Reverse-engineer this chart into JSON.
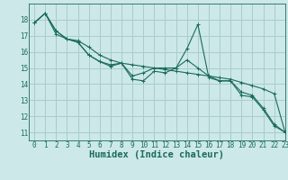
{
  "title": "",
  "xlabel": "Humidex (Indice chaleur)",
  "xlim": [
    -0.5,
    23
  ],
  "ylim": [
    10.5,
    19.0
  ],
  "bg_color": "#cce8e8",
  "grid_color": "#aacccc",
  "line_color": "#1a6b5a",
  "lines": [
    [
      17.8,
      18.4,
      17.1,
      16.8,
      16.6,
      15.8,
      15.4,
      15.1,
      15.3,
      14.3,
      14.2,
      14.8,
      14.7,
      15.0,
      16.2,
      17.7,
      14.4,
      14.2,
      14.2,
      13.3,
      13.2,
      12.4,
      11.4,
      11.0
    ],
    [
      17.8,
      18.4,
      17.3,
      16.8,
      16.7,
      16.3,
      15.8,
      15.5,
      15.3,
      15.2,
      15.1,
      15.0,
      14.9,
      14.8,
      14.7,
      14.6,
      14.5,
      14.4,
      14.3,
      14.1,
      13.9,
      13.7,
      13.4,
      11.0
    ],
    [
      17.8,
      18.4,
      17.3,
      16.8,
      16.6,
      15.8,
      15.4,
      15.2,
      15.3,
      14.5,
      14.7,
      15.0,
      15.0,
      15.0,
      15.5,
      15.0,
      14.5,
      14.2,
      14.2,
      13.5,
      13.3,
      12.5,
      11.5,
      11.0
    ]
  ],
  "yticks": [
    11,
    12,
    13,
    14,
    15,
    16,
    17,
    18
  ],
  "xticks": [
    0,
    1,
    2,
    3,
    4,
    5,
    6,
    7,
    8,
    9,
    10,
    11,
    12,
    13,
    14,
    15,
    16,
    17,
    18,
    19,
    20,
    21,
    22,
    23
  ],
  "tick_fontsize": 5.5,
  "label_fontsize": 7.5,
  "marker": "+"
}
